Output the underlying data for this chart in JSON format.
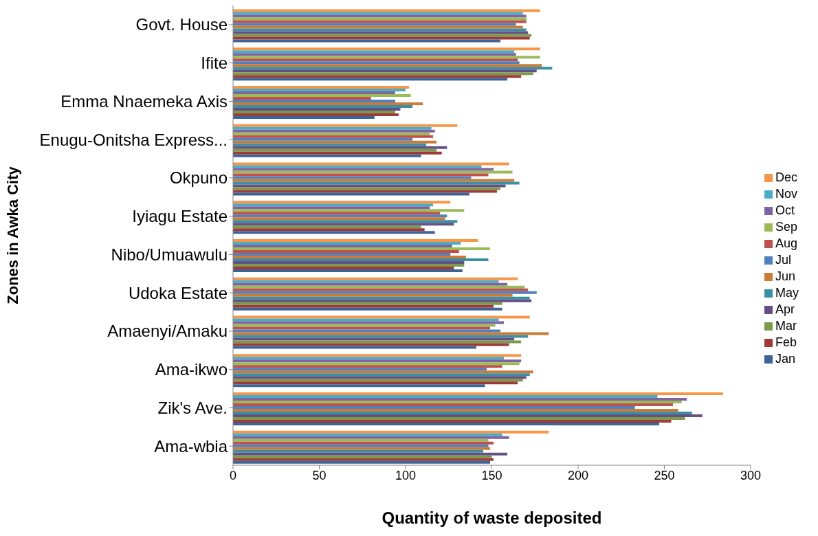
{
  "chart_data": {
    "type": "bar",
    "orientation": "horizontal",
    "xlabel": "Quantity of waste deposited",
    "ylabel": "Zones in Awka City",
    "categories": [
      "Govt. House",
      "Ifite",
      "Emma Nnaemeka Axis",
      "Enugu-Onitsha Express...",
      "Okpuno",
      "Iyiagu Estate",
      "Nibo/Umuawulu",
      "Udoka Estate",
      "Amaenyi/Amaku",
      "Ama-ikwo",
      "Zik's Ave.",
      "Ama-wbia"
    ],
    "xlim": [
      0,
      300
    ],
    "xticks": [
      0,
      50,
      100,
      150,
      200,
      250,
      300
    ],
    "legend": "right",
    "series": [
      {
        "name": "Dec",
        "color": "#f79646",
        "values": [
          178,
          178,
          102,
          130,
          160,
          126,
          142,
          165,
          172,
          167,
          284,
          183
        ]
      },
      {
        "name": "Nov",
        "color": "#4bacc6",
        "values": [
          168,
          163,
          100,
          115,
          144,
          116,
          132,
          154,
          154,
          157,
          246,
          156
        ]
      },
      {
        "name": "Oct",
        "color": "#8064a2",
        "values": [
          170,
          164,
          94,
          117,
          151,
          114,
          127,
          159,
          157,
          167,
          263,
          160
        ]
      },
      {
        "name": "Sep",
        "color": "#9bbb59",
        "values": [
          170,
          178,
          103,
          114,
          162,
          134,
          149,
          169,
          152,
          166,
          260,
          148
        ]
      },
      {
        "name": "Aug",
        "color": "#c0504d",
        "values": [
          170,
          165,
          80,
          116,
          148,
          120,
          131,
          171,
          149,
          156,
          255,
          151
        ]
      },
      {
        "name": "Jul",
        "color": "#4f81bd",
        "values": [
          164,
          166,
          94,
          104,
          138,
          124,
          126,
          176,
          155,
          147,
          233,
          148
        ]
      },
      {
        "name": "Jun",
        "color": "#cc7a35",
        "values": [
          168,
          179,
          110,
          118,
          163,
          123,
          135,
          162,
          183,
          174,
          258,
          149
        ]
      },
      {
        "name": "May",
        "color": "#3a8fa5",
        "values": [
          170,
          185,
          104,
          112,
          166,
          130,
          148,
          172,
          171,
          172,
          266,
          145
        ]
      },
      {
        "name": "Apr",
        "color": "#664f84",
        "values": [
          171,
          176,
          97,
          124,
          158,
          128,
          134,
          173,
          163,
          170,
          272,
          159
        ]
      },
      {
        "name": "Mar",
        "color": "#7d9a48",
        "values": [
          173,
          174,
          94,
          118,
          155,
          109,
          134,
          156,
          167,
          168,
          262,
          150
        ]
      },
      {
        "name": "Feb",
        "color": "#9e3b3a",
        "values": [
          172,
          167,
          96,
          121,
          153,
          111,
          128,
          151,
          160,
          165,
          254,
          151
        ]
      },
      {
        "name": "Jan",
        "color": "#3c6497",
        "values": [
          155,
          159,
          82,
          109,
          137,
          117,
          133,
          156,
          141,
          146,
          247,
          149
        ]
      }
    ]
  }
}
